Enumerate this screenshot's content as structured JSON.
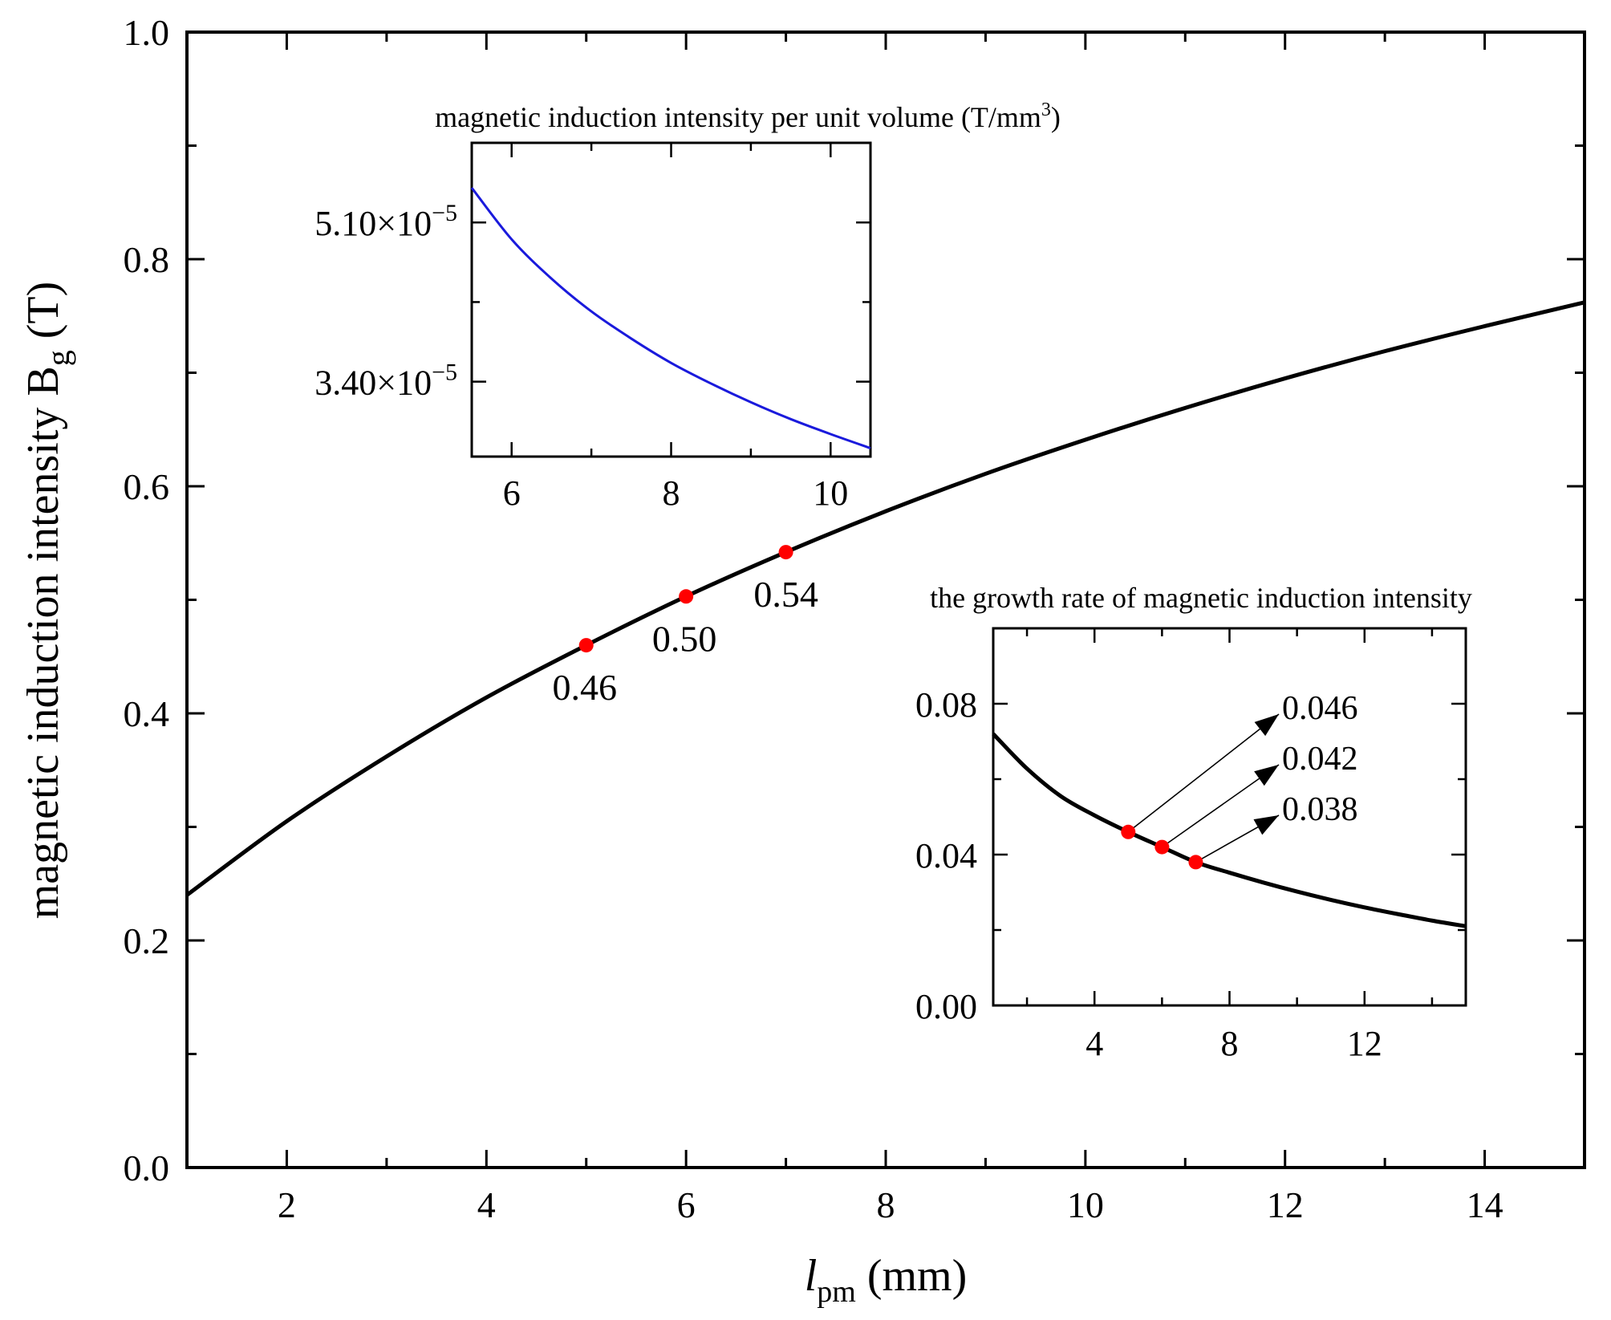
{
  "colors": {
    "main_curve": "#000000",
    "inset1_curve": "#1a1adc",
    "inset2_curve": "#000000",
    "marker": "#ff0000"
  },
  "chart_data": [
    {
      "id": "main",
      "type": "line",
      "title": "",
      "xlabel_var": "l",
      "xlabel_sub": "pm",
      "xlabel_unit": " (mm)",
      "ylabel_main": "magnetic induction intensity B",
      "ylabel_sub": "g",
      "ylabel_unit": " (T)",
      "xlim": [
        1,
        15
      ],
      "ylim": [
        0,
        1.0
      ],
      "xticks": [
        2,
        4,
        6,
        8,
        10,
        12,
        14
      ],
      "xtick_labels": [
        "2",
        "4",
        "6",
        "8",
        "10",
        "12",
        "14"
      ],
      "yticks": [
        0.0,
        0.2,
        0.4,
        0.6,
        0.8,
        1.0
      ],
      "ytick_labels": [
        "0.0",
        "0.2",
        "0.4",
        "0.6",
        "0.8",
        "1.0"
      ],
      "x": [
        1,
        2,
        3,
        4,
        5,
        6,
        7,
        8,
        9,
        10,
        11,
        12,
        13,
        14,
        15
      ],
      "y": [
        0.24,
        0.305,
        0.362,
        0.414,
        0.46,
        0.503,
        0.542,
        0.578,
        0.611,
        0.641,
        0.669,
        0.695,
        0.719,
        0.741,
        0.762
      ],
      "markers": [
        {
          "x": 5,
          "y": 0.46,
          "label": "0.46"
        },
        {
          "x": 6,
          "y": 0.503,
          "label": "0.50"
        },
        {
          "x": 7,
          "y": 0.542,
          "label": "0.54"
        }
      ]
    },
    {
      "id": "inset_volume",
      "type": "line",
      "title_main": "magnetic induction intensity per unit volume (T/mm",
      "title_sup": "3",
      "title_end": ")",
      "xlim": [
        5.5,
        10.5
      ],
      "ylim": [
        2.6e-05,
        5.95e-05
      ],
      "xticks": [
        6,
        8,
        10
      ],
      "xtick_labels": [
        "6",
        "8",
        "10"
      ],
      "yticks": [
        3.4e-05,
        5.1e-05
      ],
      "ytick_labels": [
        "3.40×10",
        "5.10×10"
      ],
      "ytick_exponent": "−5",
      "x": [
        5.5,
        6,
        6.5,
        7,
        7.5,
        8,
        8.5,
        9,
        9.5,
        10,
        10.5
      ],
      "y": [
        5.47e-05,
        4.92e-05,
        4.5e-05,
        4.15e-05,
        3.86e-05,
        3.6e-05,
        3.38e-05,
        3.18e-05,
        3e-05,
        2.84e-05,
        2.69e-05
      ]
    },
    {
      "id": "inset_growth",
      "type": "line",
      "title": "the growth rate of magnetic induction intensity",
      "xlim": [
        1,
        15
      ],
      "ylim": [
        0,
        0.1
      ],
      "xticks": [
        4,
        8,
        12
      ],
      "xtick_labels": [
        "4",
        "8",
        "12"
      ],
      "yticks": [
        0.0,
        0.04,
        0.08
      ],
      "ytick_labels": [
        "0.00",
        "0.04",
        "0.08"
      ],
      "x": [
        1,
        2,
        3,
        4,
        5,
        6,
        7,
        8,
        9,
        10,
        11,
        12,
        13,
        14,
        15
      ],
      "y": [
        0.072,
        0.0628,
        0.0555,
        0.0504,
        0.046,
        0.042,
        0.038,
        0.0352,
        0.0326,
        0.0302,
        0.028,
        0.026,
        0.0242,
        0.0225,
        0.021
      ],
      "markers": [
        {
          "x": 5,
          "y": 0.046,
          "label": "0.046"
        },
        {
          "x": 6,
          "y": 0.042,
          "label": "0.042"
        },
        {
          "x": 7,
          "y": 0.038,
          "label": "0.038"
        }
      ]
    }
  ]
}
